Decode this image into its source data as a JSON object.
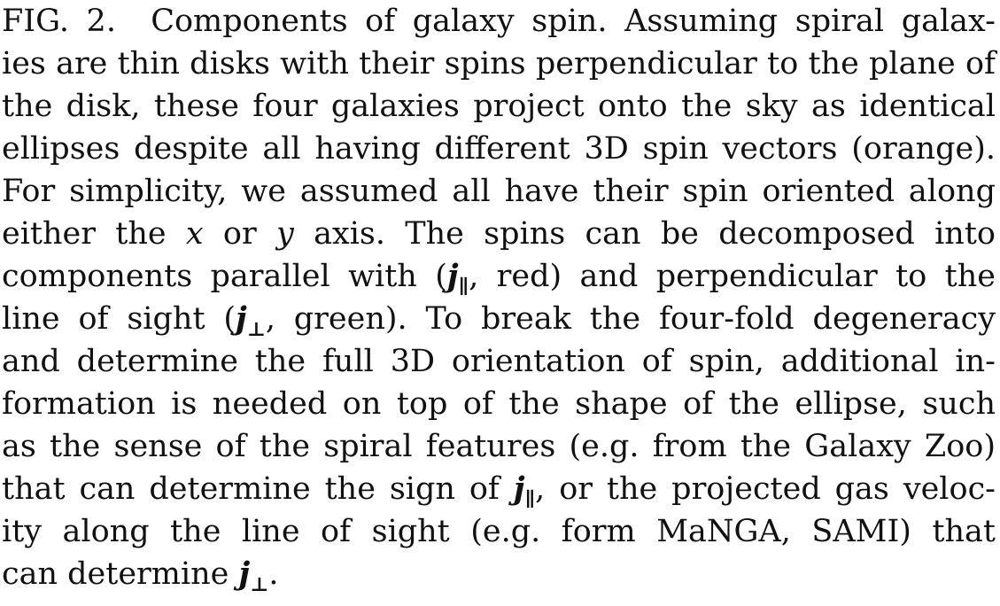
{
  "figure_label": "FIG. 2.",
  "lines": [
    "Components of galaxy spin. Assuming spiral galax-",
    "ies are thin disks with their spins perpendicular to the plane of",
    "the disk, these four galaxies project onto the sky as identical",
    "ellipses despite all having different 3D spin vectors (orange).",
    "For simplicity, we assumed all have their spin oriented along",
    "either the",
    "or",
    "axis. The spins can be decomposed into",
    "components parallel with (",
    ", red) and perpendicular to the",
    "line of sight (",
    ", green). To break the four-fold degeneracy",
    "and determine the full 3D orientation of spin, additional in-",
    "formation is needed on top of the shape of the ellipse, such",
    "as the sense of the spiral features (e.g. from the Galaxy Zoo)",
    "that can determine the sign of",
    ", or the projected gas veloc-",
    "ity along the line of sight (e.g. form MaNGA, SAMI) that",
    "can determine",
    "."
  ],
  "math": {
    "x": "x",
    "y": "y",
    "j": "j",
    "parallel": "∥",
    "perp": "⊥"
  }
}
